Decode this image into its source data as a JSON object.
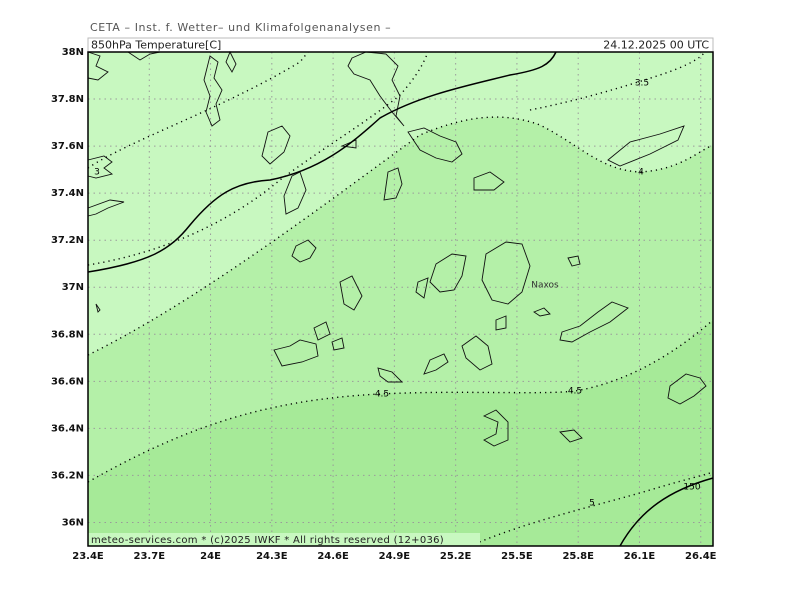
{
  "header": {
    "title": "CETA – Inst. f. Wetter– und Klimafolgenanalysen –",
    "field": "850hPa Temperature[C]",
    "time": "24.12.2025 00 UTC"
  },
  "map": {
    "xlim": [
      23.4,
      26.46
    ],
    "ylim": [
      35.9,
      38
    ],
    "grid": true,
    "xticks": [
      {
        "value": 23.4,
        "label": "23.4E"
      },
      {
        "value": 23.7,
        "label": "23.7E"
      },
      {
        "value": 24,
        "label": "24E"
      },
      {
        "value": 24.3,
        "label": "24.3E"
      },
      {
        "value": 24.6,
        "label": "24.6E"
      },
      {
        "value": 24.9,
        "label": "24.9E"
      },
      {
        "value": 25.2,
        "label": "25.2E"
      },
      {
        "value": 25.5,
        "label": "25.5E"
      },
      {
        "value": 25.8,
        "label": "25.8E"
      },
      {
        "value": 26.1,
        "label": "26.1E"
      },
      {
        "value": 26.4,
        "label": "26.4E"
      }
    ],
    "yticks": [
      {
        "value": 38,
        "label": "38N"
      },
      {
        "value": 37.8,
        "label": "37.8N"
      },
      {
        "value": 37.6,
        "label": "37.6N"
      },
      {
        "value": 37.4,
        "label": "37.4N"
      },
      {
        "value": 37.2,
        "label": "37.2N"
      },
      {
        "value": 37,
        "label": "37N"
      },
      {
        "value": 36.8,
        "label": "36.8N"
      },
      {
        "value": 36.6,
        "label": "36.6N"
      },
      {
        "value": 36.4,
        "label": "36.4N"
      },
      {
        "value": 36.2,
        "label": "36.2N"
      },
      {
        "value": 36,
        "label": "36N"
      }
    ],
    "contour_labels": [
      "3.5",
      "4",
      "3",
      "4.5",
      "4.5",
      "5",
      "150"
    ],
    "place_labels": [
      "Naxos"
    ]
  },
  "footer": "meteo-services.com * (c)2025 IWKF * All rights reserved (12+036)"
}
